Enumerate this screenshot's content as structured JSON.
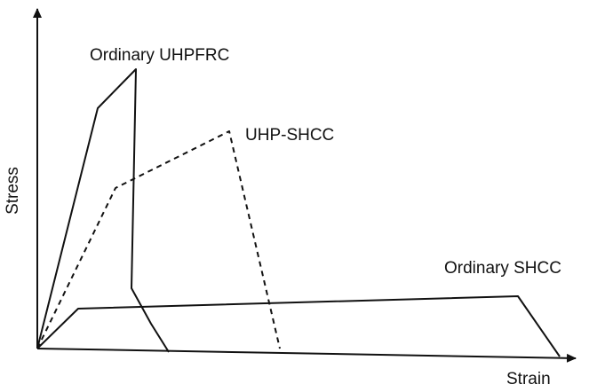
{
  "axes": {
    "x_label": "Strain",
    "y_label": "Stress"
  },
  "curves": [
    {
      "label": "Ordinary UHPFRC"
    },
    {
      "label": "UHP-SHCC"
    },
    {
      "label": "Ordinary SHCC"
    }
  ]
}
